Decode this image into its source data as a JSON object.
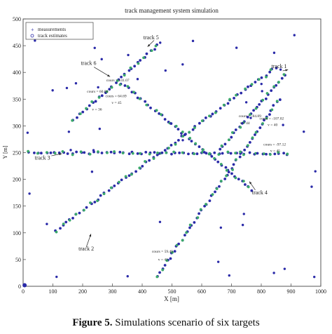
{
  "figure": {
    "caption_label": "Figure 5.",
    "caption_text": " Simulations scenario of six targets"
  },
  "chart_data": {
    "type": "scatter",
    "title": "track management system simulation",
    "xlabel": "X [m]",
    "ylabel": "Y [m]",
    "xlim": [
      0,
      1000
    ],
    "ylim": [
      0,
      500
    ],
    "xticks": [
      0,
      100,
      200,
      300,
      400,
      500,
      600,
      700,
      800,
      900,
      1000
    ],
    "yticks": [
      0,
      50,
      100,
      150,
      200,
      250,
      300,
      350,
      400,
      450,
      500
    ],
    "grid": false,
    "legend": {
      "placement": "top-left",
      "entries": [
        "measurements",
        "track estimates"
      ]
    },
    "colors": {
      "measurements": "#2a2aa8",
      "track_estimates": "#3aa86a"
    },
    "tracks": [
      {
        "label": "track 1",
        "start": [
          880,
          395
        ],
        "end": [
          660,
          255
        ]
      },
      {
        "label": "track 2",
        "start": [
          110,
          105
        ],
        "end": [
          850,
          410
        ]
      },
      {
        "label": "track 3",
        "start": [
          20,
          250
        ],
        "end": [
          890,
          248
        ]
      },
      {
        "label": "track 4",
        "start": [
          330,
          380
        ],
        "end": [
          770,
          180
        ]
      },
      {
        "label": "track 5",
        "start": [
          450,
          20
        ],
        "end": [
          860,
          350
        ]
      },
      {
        "label": "track 6",
        "start": [
          170,
          310
        ],
        "end": [
          450,
          450
        ]
      }
    ],
    "annotations": [
      {
        "text": "track 1",
        "x": 860,
        "y": 408
      },
      {
        "text": "track 2",
        "x": 212,
        "y": 67
      },
      {
        "text": "track 3",
        "x": 65,
        "y": 237
      },
      {
        "text": "track 4",
        "x": 795,
        "y": 172
      },
      {
        "text": "track 5",
        "x": 430,
        "y": 462
      },
      {
        "text": "track 6",
        "x": 220,
        "y": 414
      },
      {
        "text": "cours = 141.07",
        "x": 318,
        "y": 383
      },
      {
        "text": "cours = 60.06",
        "x": 250,
        "y": 362
      },
      {
        "text": "v = 36",
        "x": 248,
        "y": 329
      },
      {
        "text": "cours = 64.69",
        "x": 312,
        "y": 354
      },
      {
        "text": "v = 45",
        "x": 314,
        "y": 341
      },
      {
        "text": "cours = -84.89",
        "x": 762,
        "y": 316
      },
      {
        "text": "v = 44",
        "x": 745,
        "y": 303
      },
      {
        "text": "cours = -107.02",
        "x": 835,
        "y": 312
      },
      {
        "text": "v = 40",
        "x": 838,
        "y": 300
      },
      {
        "text": "cours = -97.12",
        "x": 845,
        "y": 263
      },
      {
        "text": "v = 45",
        "x": 847,
        "y": 251
      },
      {
        "text": "cours = 59.49",
        "x": 468,
        "y": 63
      },
      {
        "text": "v = 41",
        "x": 470,
        "y": 48
      }
    ]
  }
}
